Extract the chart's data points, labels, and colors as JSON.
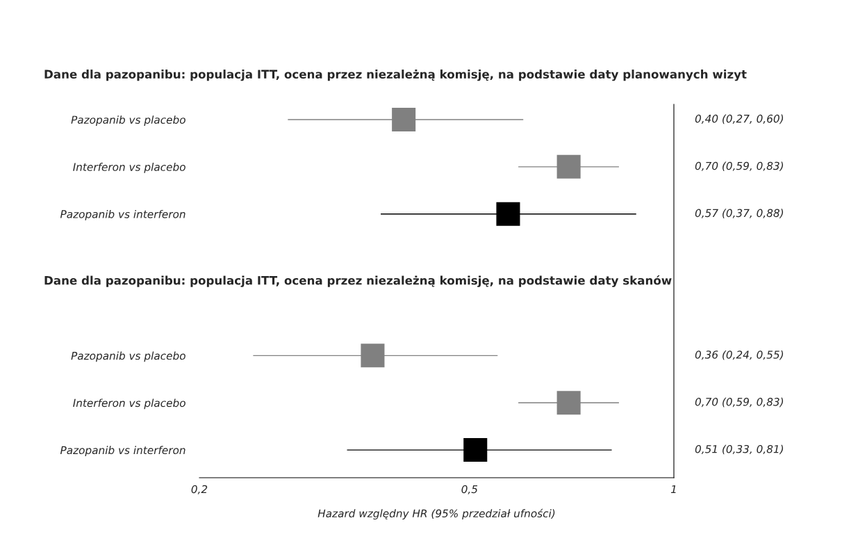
{
  "chart_data": {
    "type": "scatter",
    "title": "Dane dla pazopanibu: populacja ITT, ocena przez niezależną komisję, na podstawie daty planowanych wizyt",
    "annotations": [
      "Dane dla pazopanibu: populacja ITT, ocena przez niezależną komisję, na podstawie daty skanów"
    ],
    "categories": [
      "Pazopanib vs placebo",
      "Interferon vs placebo",
      "Pazopanib vs interferon",
      null,
      null,
      "Pazopanib vs placebo",
      "Interferon vs placebo",
      "Pazopanib vs interferon"
    ],
    "orientation": "horizontal",
    "values": [
      0.4,
      0.7,
      0.57,
      null,
      null,
      0.36,
      0.7,
      0.51
    ],
    "errors": [
      [
        0.27,
        0.6
      ],
      [
        0.59,
        0.83
      ],
      [
        0.37,
        0.88
      ],
      null,
      null,
      [
        0.24,
        0.55
      ],
      [
        0.59,
        0.83
      ],
      [
        0.33,
        0.81
      ]
    ],
    "colors": [
      "#808080",
      "#808080",
      "#000000",
      "#808080",
      "#808080",
      "#808080",
      "#808080",
      "#000000"
    ],
    "value_labels": [
      "0,40 (0,27, 0,60)",
      "0,70 (0,59, 0,83)",
      "0,57 (0,37, 0,88)",
      null,
      null,
      "0,36 (0,24, 0,55)",
      "0,70 (0,59, 0,83)",
      "0,51 (0,33, 0,81)"
    ],
    "log": "x",
    "xlim": [
      0.2,
      1
    ],
    "xticks": [
      {
        "value": 0.2,
        "label": "0,2"
      },
      {
        "value": 0.5,
        "label": "0,5"
      },
      {
        "value": 1,
        "label": "1"
      }
    ],
    "xlabel": "Hazard względny HR (95% przedział ufności)",
    "marker": "square"
  }
}
